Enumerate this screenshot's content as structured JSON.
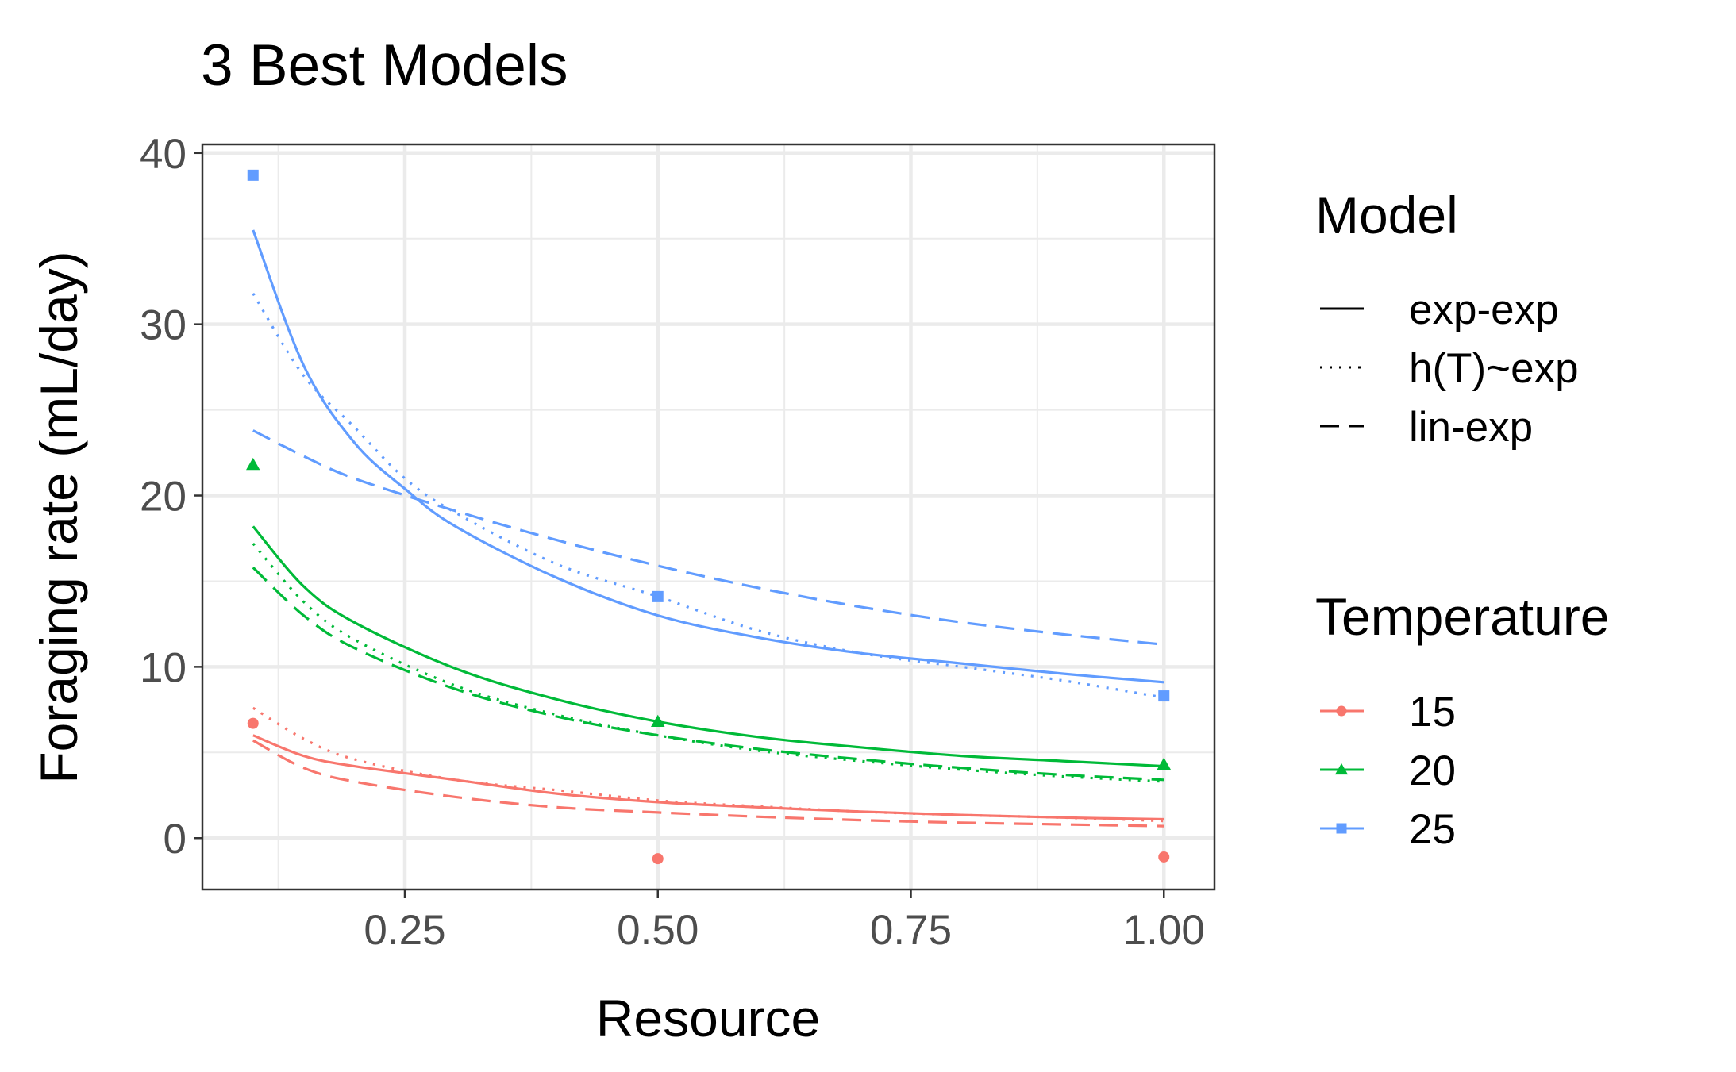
{
  "chart_data": {
    "type": "line",
    "title": "3 Best Models",
    "xlabel": "Resource",
    "ylabel": "Foraging rate (mL/day)",
    "xlim": [
      0.05,
      1.05
    ],
    "ylim": [
      -3,
      40.5
    ],
    "x_ticks": [
      0.25,
      0.5,
      0.75,
      1.0
    ],
    "x_tick_labels": [
      "0.25",
      "0.50",
      "0.75",
      "1.00"
    ],
    "y_ticks": [
      0,
      10,
      20,
      30,
      40
    ],
    "y_tick_labels": [
      "0",
      "10",
      "20",
      "30",
      "40"
    ],
    "grid": true,
    "legend_position": "right",
    "legends": {
      "model": {
        "title": "Model",
        "entries": [
          {
            "label": "exp-exp",
            "linetype": "solid"
          },
          {
            "label": "h(T)~exp",
            "linetype": "dotted"
          },
          {
            "label": "lin-exp",
            "linetype": "dashed"
          }
        ]
      },
      "temperature": {
        "title": "Temperature",
        "entries": [
          {
            "label": "15",
            "color": "#F8766D",
            "shape": "circle"
          },
          {
            "label": "20",
            "color": "#00BA38",
            "shape": "triangle"
          },
          {
            "label": "25",
            "color": "#619CFF",
            "shape": "square"
          }
        ]
      }
    },
    "points": [
      {
        "temperature": "15",
        "x": [
          0.1,
          0.5,
          1.0
        ],
        "y": [
          6.7,
          -1.2,
          -1.1
        ]
      },
      {
        "temperature": "20",
        "x": [
          0.1,
          0.5,
          1.0
        ],
        "y": [
          21.8,
          6.8,
          4.3
        ]
      },
      {
        "temperature": "25",
        "x": [
          0.1,
          0.5,
          1.0
        ],
        "y": [
          38.7,
          14.1,
          8.3
        ]
      }
    ],
    "series": [
      {
        "temperature": "15",
        "model": "exp-exp",
        "x": [
          0.1,
          0.15,
          0.2,
          0.3,
          0.4,
          0.5,
          0.6,
          0.7,
          0.8,
          0.9,
          1.0
        ],
        "y": [
          6.0,
          4.8,
          4.2,
          3.4,
          2.6,
          2.1,
          1.8,
          1.55,
          1.35,
          1.2,
          1.1
        ]
      },
      {
        "temperature": "15",
        "model": "h(T)~exp",
        "x": [
          0.1,
          0.15,
          0.2,
          0.3,
          0.4,
          0.5,
          0.6,
          0.7,
          0.8,
          0.9,
          1.0
        ],
        "y": [
          7.6,
          5.8,
          4.6,
          3.4,
          2.8,
          2.2,
          1.85,
          1.55,
          1.35,
          1.2,
          1.0
        ]
      },
      {
        "temperature": "15",
        "model": "lin-exp",
        "x": [
          0.1,
          0.15,
          0.2,
          0.3,
          0.4,
          0.5,
          0.6,
          0.7,
          0.8,
          0.9,
          1.0
        ],
        "y": [
          5.7,
          4.1,
          3.3,
          2.4,
          1.8,
          1.5,
          1.25,
          1.05,
          0.9,
          0.8,
          0.7
        ]
      },
      {
        "temperature": "20",
        "model": "exp-exp",
        "x": [
          0.1,
          0.15,
          0.2,
          0.3,
          0.4,
          0.5,
          0.6,
          0.7,
          0.8,
          0.9,
          1.0
        ],
        "y": [
          18.2,
          14.7,
          12.6,
          9.9,
          8.1,
          6.8,
          5.9,
          5.3,
          4.8,
          4.5,
          4.2
        ]
      },
      {
        "temperature": "20",
        "model": "h(T)~exp",
        "x": [
          0.1,
          0.15,
          0.2,
          0.3,
          0.4,
          0.5,
          0.6,
          0.7,
          0.8,
          0.9,
          1.0
        ],
        "y": [
          17.2,
          13.8,
          11.6,
          8.9,
          7.2,
          6.0,
          5.1,
          4.5,
          4.0,
          3.6,
          3.3
        ]
      },
      {
        "temperature": "20",
        "model": "lin-exp",
        "x": [
          0.1,
          0.15,
          0.2,
          0.3,
          0.4,
          0.5,
          0.6,
          0.7,
          0.8,
          0.9,
          1.0
        ],
        "y": [
          15.8,
          13.0,
          11.1,
          8.7,
          7.1,
          6.0,
          5.2,
          4.6,
          4.1,
          3.7,
          3.4
        ]
      },
      {
        "temperature": "25",
        "model": "exp-exp",
        "x": [
          0.1,
          0.15,
          0.2,
          0.25,
          0.3,
          0.4,
          0.5,
          0.6,
          0.7,
          0.8,
          0.9,
          1.0
        ],
        "y": [
          35.5,
          27.6,
          23.1,
          20.4,
          18.2,
          15.2,
          13.0,
          11.7,
          10.8,
          10.2,
          9.6,
          9.1
        ]
      },
      {
        "temperature": "25",
        "model": "h(T)~exp",
        "x": [
          0.1,
          0.15,
          0.2,
          0.25,
          0.3,
          0.4,
          0.5,
          0.6,
          0.7,
          0.8,
          0.9,
          1.0
        ],
        "y": [
          31.8,
          27.0,
          24.0,
          21.0,
          19.0,
          16.0,
          14.1,
          12.1,
          10.8,
          10.0,
          9.2,
          8.2
        ]
      },
      {
        "temperature": "25",
        "model": "lin-exp",
        "x": [
          0.1,
          0.15,
          0.2,
          0.3,
          0.4,
          0.5,
          0.6,
          0.7,
          0.8,
          0.9,
          1.0
        ],
        "y": [
          23.8,
          22.3,
          21.0,
          19.1,
          17.4,
          15.9,
          14.6,
          13.5,
          12.6,
          11.9,
          11.3
        ]
      }
    ]
  }
}
